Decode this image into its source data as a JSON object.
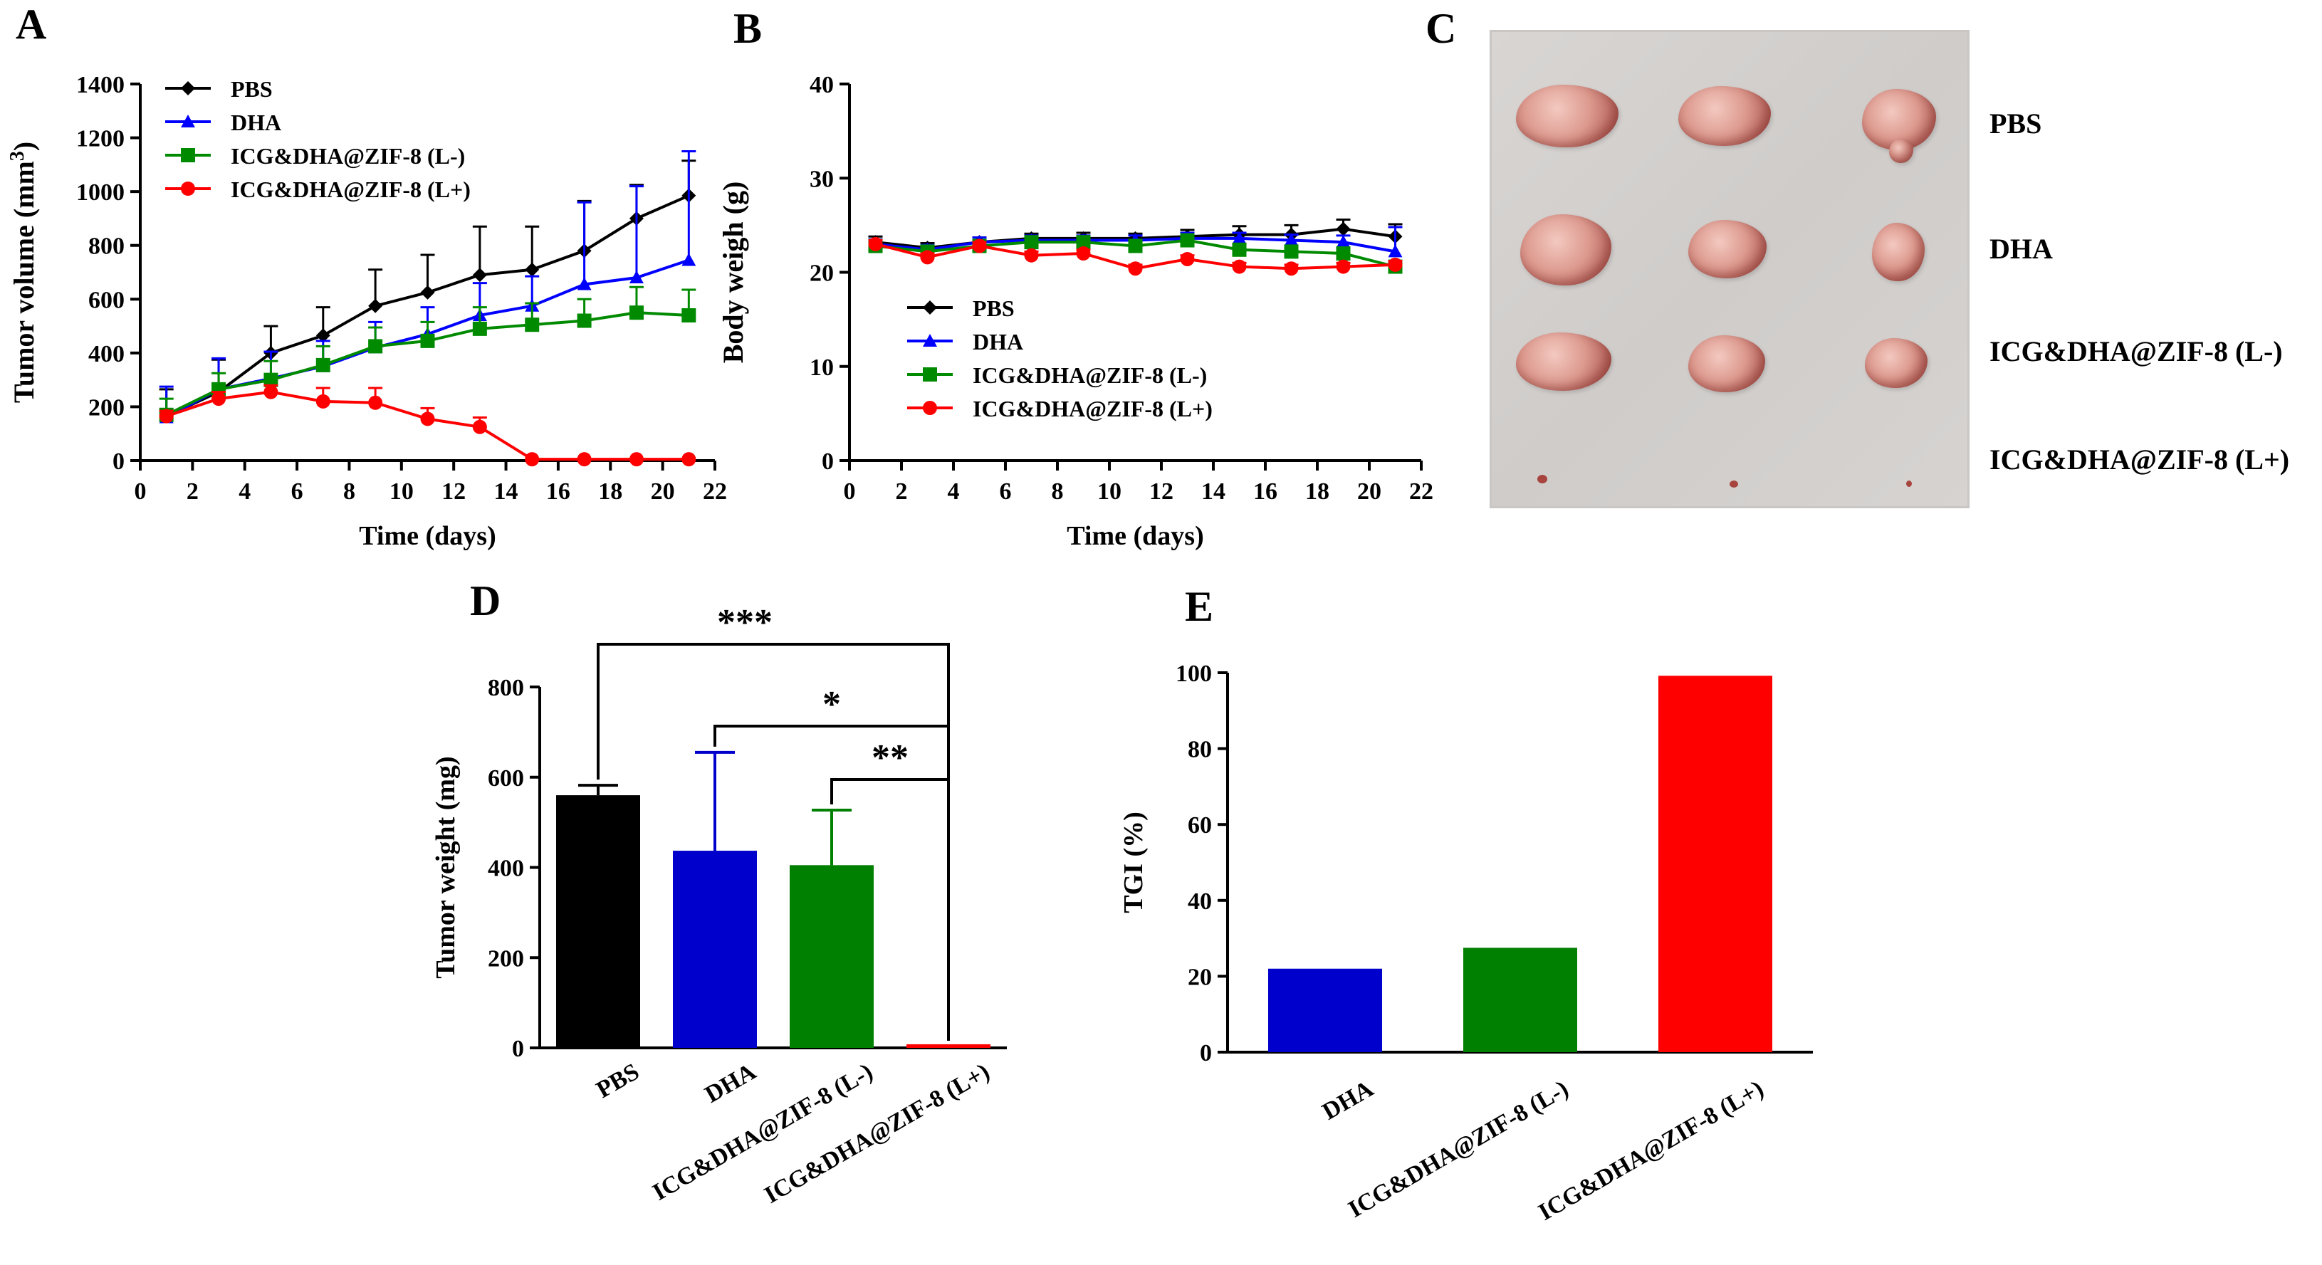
{
  "panels": {
    "A": "A",
    "B": "B",
    "C": "C",
    "D": "D",
    "E": "E"
  },
  "colors": {
    "PBS": "#000000",
    "DHA": "#0000ff",
    "L-": "#008a00",
    "L+": "#ff0000",
    "L+_bar": "#ff0000",
    "L-_bar": "#008000",
    "DHA_bar": "#0000cc"
  },
  "chart_data": [
    {
      "id": "A",
      "type": "line",
      "xlabel": "Time (days)",
      "ylabel_main": "Tumor volume (mm",
      "ylabel_sup": "3",
      "ylabel_end": ")",
      "xlim": [
        0,
        22
      ],
      "ylim": [
        0,
        1400
      ],
      "xticks": [
        "0",
        "2",
        "4",
        "6",
        "8",
        "10",
        "12",
        "14",
        "16",
        "18",
        "20",
        "22"
      ],
      "yticks": [
        "0",
        "200",
        "400",
        "600",
        "800",
        "1000",
        "1200",
        "1400"
      ],
      "x": [
        1,
        3,
        5,
        7,
        9,
        11,
        13,
        15,
        17,
        19,
        21
      ],
      "series": [
        {
          "name": "PBS",
          "marker": "diamond",
          "values": [
            165,
            255,
            400,
            465,
            575,
            625,
            690,
            710,
            780,
            900,
            985
          ],
          "errors": [
            100,
            120,
            100,
            105,
            135,
            140,
            180,
            160,
            185,
            125,
            130
          ]
        },
        {
          "name": "DHA",
          "marker": "triangle",
          "values": [
            160,
            265,
            305,
            350,
            420,
            470,
            540,
            575,
            655,
            680,
            745
          ],
          "errors": [
            115,
            115,
            100,
            95,
            95,
            100,
            120,
            110,
            305,
            340,
            405
          ]
        },
        {
          "name": "ICG&DHA@ZIF-8 (L-)",
          "marker": "square",
          "values": [
            170,
            265,
            300,
            355,
            425,
            445,
            490,
            505,
            520,
            550,
            540
          ],
          "errors": [
            60,
            60,
            70,
            70,
            70,
            70,
            80,
            80,
            80,
            95,
            95
          ]
        },
        {
          "name": "ICG&DHA@ZIF-8 (L+)",
          "marker": "circle",
          "values": [
            165,
            230,
            255,
            220,
            215,
            155,
            125,
            5,
            5,
            5,
            5
          ],
          "errors": [
            20,
            25,
            25,
            50,
            55,
            40,
            35,
            0,
            0,
            0,
            0
          ]
        }
      ]
    },
    {
      "id": "B",
      "type": "line",
      "xlabel": "Time (days)",
      "ylabel": "Body weigh (g)",
      "xlim": [
        0,
        22
      ],
      "ylim": [
        0,
        40
      ],
      "xticks": [
        "0",
        "2",
        "4",
        "6",
        "8",
        "10",
        "12",
        "14",
        "16",
        "18",
        "20",
        "22"
      ],
      "yticks": [
        "0",
        "10",
        "20",
        "30",
        "40"
      ],
      "x": [
        1,
        3,
        5,
        7,
        9,
        11,
        13,
        15,
        17,
        19,
        21
      ],
      "series": [
        {
          "name": "PBS",
          "marker": "diamond",
          "values": [
            23.2,
            22.6,
            23.2,
            23.6,
            23.6,
            23.6,
            23.8,
            24.0,
            24.0,
            24.6,
            23.8
          ],
          "errors": [
            0.6,
            0.5,
            0.5,
            0.5,
            0.6,
            0.5,
            0.7,
            0.9,
            1.0,
            1.0,
            1.3
          ]
        },
        {
          "name": "DHA",
          "marker": "triangle",
          "values": [
            23.0,
            22.4,
            23.2,
            23.4,
            23.4,
            23.4,
            23.6,
            23.6,
            23.4,
            23.2,
            22.2
          ],
          "errors": [
            0.5,
            0.5,
            0.5,
            0.5,
            0.5,
            0.5,
            0.6,
            0.6,
            0.6,
            0.7,
            2.6
          ]
        },
        {
          "name": "ICG&DHA@ZIF-8 (L-)",
          "marker": "square",
          "values": [
            22.8,
            22.2,
            22.8,
            23.2,
            23.2,
            22.8,
            23.4,
            22.4,
            22.2,
            22.0,
            20.6
          ],
          "errors": [
            0.5,
            0.5,
            0.5,
            0.5,
            0.5,
            0.5,
            0.5,
            0.5,
            0.5,
            0.5,
            0.5
          ]
        },
        {
          "name": "ICG&DHA@ZIF-8 (L+)",
          "marker": "circle",
          "values": [
            23.0,
            21.6,
            22.8,
            21.8,
            22.0,
            20.4,
            21.4,
            20.6,
            20.4,
            20.6,
            20.8
          ],
          "errors": [
            0.4,
            0.4,
            0.4,
            0.4,
            0.4,
            0.4,
            0.4,
            0.4,
            0.4,
            0.4,
            0.4
          ]
        }
      ]
    },
    {
      "id": "D",
      "type": "bar",
      "ylabel": "Tumor weight (mg)",
      "ylim": [
        0,
        800
      ],
      "yticks": [
        "0",
        "200",
        "400",
        "600",
        "800"
      ],
      "categories": [
        "PBS",
        "DHA",
        "ICG&DHA@ZIF-8 (L-)",
        "ICG&DHA@ZIF-8 (L+)"
      ],
      "values": [
        560,
        437,
        405,
        8
      ],
      "errors": [
        22,
        218,
        122,
        0
      ],
      "significance": [
        {
          "from": 0,
          "to": 3,
          "label": "***"
        },
        {
          "from": 1,
          "to": 3,
          "label": "*"
        },
        {
          "from": 2,
          "to": 3,
          "label": "**"
        }
      ]
    },
    {
      "id": "E",
      "type": "bar",
      "ylabel": "TGI (%)",
      "ylim": [
        0,
        100
      ],
      "yticks": [
        "0",
        "20",
        "40",
        "60",
        "80",
        "100"
      ],
      "categories": [
        "DHA",
        "ICG&DHA@ZIF-8 (L-)",
        "ICG&DHA@ZIF-8 (L+)"
      ],
      "values": [
        22,
        27.5,
        99.2
      ]
    }
  ],
  "photo": {
    "rows": [
      "PBS",
      "DHA",
      "ICG&DHA@ZIF-8 (L-)",
      "ICG&DHA@ZIF-8 (L+)"
    ]
  }
}
